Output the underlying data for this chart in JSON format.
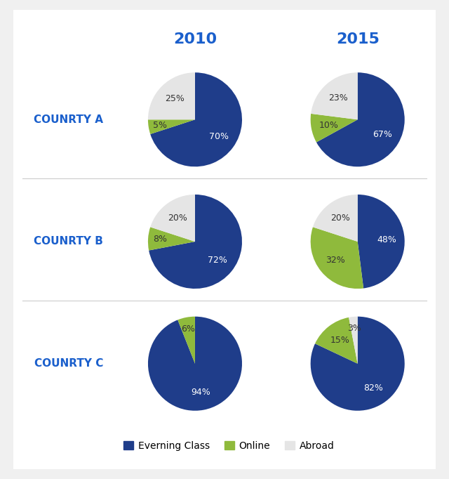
{
  "title_2010": "2010",
  "title_2015": "2015",
  "countries": [
    "COUNRTY A",
    "COUNRTY B",
    "COUNRTY C"
  ],
  "data_2010": [
    [
      70,
      5,
      25
    ],
    [
      72,
      8,
      20
    ],
    [
      94,
      6,
      0
    ]
  ],
  "data_2015": [
    [
      67,
      10,
      23
    ],
    [
      48,
      32,
      20
    ],
    [
      82,
      15,
      3
    ]
  ],
  "labels_2010": [
    [
      "70%",
      "5%",
      "25%"
    ],
    [
      "72%",
      "8%",
      "20%"
    ],
    [
      "94%",
      "6%",
      ""
    ]
  ],
  "labels_2015": [
    [
      "67%",
      "10%",
      "23%"
    ],
    [
      "48%",
      "32%",
      "20%"
    ],
    [
      "82%",
      "15%",
      "3%"
    ]
  ],
  "colors": [
    "#1f3d8a",
    "#8fba3c",
    "#e5e5e5"
  ],
  "country_label_color": "#1a5fcc",
  "header_color": "#1a5fcc",
  "bg_color": "#ffffff",
  "card_color": "#ffffff",
  "legend_labels": [
    "Everning Class",
    "Online",
    "Abroad"
  ],
  "separator_color": "#cccccc",
  "border_color": "#cccccc"
}
